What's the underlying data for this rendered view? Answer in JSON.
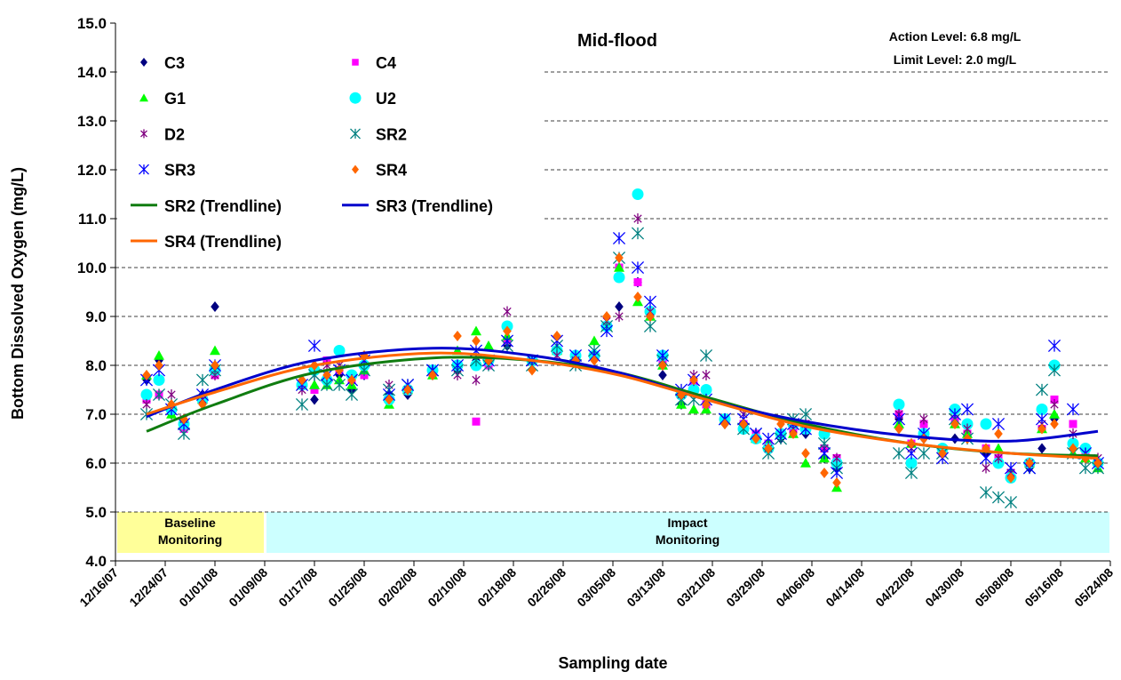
{
  "chart_data": {
    "type": "scatter",
    "title": "Mid-flood",
    "annotations": [
      "Action Level: 6.8 mg/L",
      "Limit Level: 2.0 mg/L"
    ],
    "x_label": "Sampling date",
    "y_label": "Bottom Dissolved Oxygen (mg/L)",
    "xlim": [
      "12/16/07",
      "05/24/08"
    ],
    "xticks": [
      "12/16/07",
      "12/24/07",
      "01/01/08",
      "01/09/08",
      "01/17/08",
      "01/25/08",
      "02/02/08",
      "02/10/08",
      "02/18/08",
      "02/26/08",
      "03/05/08",
      "03/13/08",
      "03/21/08",
      "03/29/08",
      "04/06/08",
      "04/14/08",
      "04/22/08",
      "04/30/08",
      "05/08/08",
      "05/16/08",
      "05/24/08"
    ],
    "ylim": [
      4,
      15
    ],
    "yticks": [
      {
        "value": 4,
        "label": "4.0"
      },
      {
        "value": 5,
        "label": "5.0"
      },
      {
        "value": 6,
        "label": "6.0"
      },
      {
        "value": 7,
        "label": "7.0"
      },
      {
        "value": 8,
        "label": "8.0"
      },
      {
        "value": 9,
        "label": "9.0"
      },
      {
        "value": 10,
        "label": "10.0"
      },
      {
        "value": 11,
        "label": "11.0"
      },
      {
        "value": 12,
        "label": "12.0"
      },
      {
        "value": 13,
        "label": "13.0"
      },
      {
        "value": 14,
        "label": "14.0"
      },
      {
        "value": 15,
        "label": "15.0"
      }
    ],
    "grid": true,
    "periods": [
      {
        "label_lines": [
          "Baseline",
          "Monitoring"
        ],
        "start": "12/16/07",
        "end": "01/09/08",
        "color": "#ffff99"
      },
      {
        "label_lines": [
          "Impact",
          "Monitoring"
        ],
        "start": "01/09/08",
        "end": "05/24/08",
        "color": "#ccffff"
      }
    ],
    "x": [
      "12/21/07",
      "12/23/07",
      "12/25/07",
      "12/27/07",
      "12/30/07",
      "01/01/08",
      "01/15/08",
      "01/17/08",
      "01/19/08",
      "01/21/08",
      "01/23/08",
      "01/25/08",
      "01/29/08",
      "02/01/08",
      "02/05/08",
      "02/09/08",
      "02/12/08",
      "02/14/08",
      "02/17/08",
      "02/21/08",
      "02/25/08",
      "02/28/08",
      "03/02/08",
      "03/04/08",
      "03/06/08",
      "03/09/08",
      "03/11/08",
      "03/13/08",
      "03/16/08",
      "03/18/08",
      "03/20/08",
      "03/23/08",
      "03/26/08",
      "03/28/08",
      "03/30/08",
      "04/01/08",
      "04/03/08",
      "04/05/08",
      "04/08/08",
      "04/10/08",
      "04/20/08",
      "04/22/08",
      "04/24/08",
      "04/27/08",
      "04/29/08",
      "05/01/08",
      "05/04/08",
      "05/06/08",
      "05/08/08",
      "05/11/08",
      "05/13/08",
      "05/15/08",
      "05/18/08",
      "05/20/08",
      "05/22/08"
    ],
    "series": [
      {
        "name": "C3",
        "color": "#000080",
        "marker": "diamond",
        "values": [
          7.7,
          8.1,
          7.0,
          6.7,
          7.4,
          9.2,
          7.6,
          7.3,
          7.7,
          7.8,
          7.5,
          7.8,
          7.4,
          7.4,
          7.8,
          7.9,
          8.1,
          8.0,
          8.4,
          8.1,
          8.3,
          8.1,
          8.2,
          8.8,
          9.2,
          9.7,
          9.0,
          7.8,
          7.2,
          7.5,
          7.2,
          6.8,
          6.8,
          6.5,
          6.3,
          6.5,
          6.7,
          6.6,
          6.1,
          5.9,
          6.9,
          6.4,
          6.5,
          6.2,
          6.5,
          6.6,
          6.2,
          6.0,
          5.7,
          5.9,
          6.3,
          6.9,
          6.3,
          6.1,
          6.0
        ]
      },
      {
        "name": "C4",
        "color": "#ff00ff",
        "marker": "square",
        "values": [
          7.3,
          7.4,
          7.1,
          6.7,
          7.3,
          7.8,
          7.6,
          7.5,
          8.1,
          7.9,
          7.7,
          7.8,
          7.3,
          7.5,
          7.8,
          8.0,
          6.85,
          8.0,
          8.5,
          8.1,
          8.3,
          8.2,
          8.2,
          8.8,
          10.0,
          9.7,
          9.1,
          8.1,
          7.4,
          7.6,
          7.2,
          6.9,
          6.8,
          6.6,
          6.4,
          6.6,
          6.7,
          6.8,
          6.3,
          6.1,
          7.0,
          6.4,
          6.8,
          6.2,
          6.9,
          6.6,
          6.3,
          6.1,
          5.8,
          6.0,
          6.7,
          7.3,
          6.8,
          6.2,
          6.0
        ]
      },
      {
        "name": "G1",
        "color": "#00ff00",
        "marker": "triangle",
        "values": [
          7.8,
          8.2,
          7.0,
          6.8,
          7.3,
          8.3,
          7.6,
          7.6,
          7.6,
          7.7,
          7.6,
          7.9,
          7.2,
          7.5,
          7.8,
          8.3,
          8.7,
          8.4,
          8.6,
          8.1,
          8.3,
          8.2,
          8.5,
          8.8,
          10.0,
          9.3,
          9.0,
          8.0,
          7.2,
          7.1,
          7.1,
          6.9,
          6.8,
          6.5,
          6.4,
          6.6,
          6.6,
          6.0,
          6.1,
          5.5,
          6.8,
          6.4,
          6.6,
          6.3,
          6.8,
          6.6,
          6.3,
          6.3,
          5.8,
          6.0,
          6.7,
          7.0,
          6.2,
          6.1,
          5.9
        ]
      },
      {
        "name": "U2",
        "color": "#00ffff",
        "marker": "circle",
        "values": [
          7.4,
          7.7,
          7.1,
          6.8,
          7.3,
          7.9,
          7.6,
          7.9,
          7.7,
          8.3,
          7.8,
          8.0,
          7.3,
          7.5,
          7.9,
          8.0,
          8.0,
          8.1,
          8.8,
          8.1,
          8.3,
          8.2,
          8.2,
          8.8,
          9.8,
          11.5,
          9.1,
          8.2,
          7.4,
          7.5,
          7.5,
          6.9,
          6.7,
          6.5,
          6.3,
          6.6,
          6.8,
          6.7,
          6.6,
          6.0,
          7.2,
          6.0,
          6.6,
          6.3,
          7.1,
          6.8,
          6.8,
          6.0,
          5.7,
          6.0,
          7.1,
          8.0,
          6.4,
          6.3,
          6.0
        ]
      },
      {
        "name": "D2",
        "color": "#800080",
        "marker": "asterisk",
        "values": [
          7.2,
          7.4,
          7.4,
          6.9,
          7.3,
          7.8,
          7.5,
          7.8,
          8.0,
          8.0,
          7.7,
          8.1,
          7.6,
          7.5,
          7.9,
          7.8,
          7.7,
          8.1,
          9.1,
          8.1,
          8.2,
          8.1,
          8.2,
          8.9,
          9.0,
          11.0,
          9.1,
          8.1,
          7.4,
          7.8,
          7.8,
          6.9,
          7.0,
          6.6,
          6.3,
          6.6,
          6.7,
          6.8,
          6.3,
          6.1,
          7.0,
          6.3,
          6.9,
          6.2,
          6.9,
          6.7,
          5.9,
          6.1,
          5.8,
          6.0,
          6.8,
          7.2,
          6.6,
          6.2,
          6.1
        ]
      },
      {
        "name": "SR2",
        "color": "#008080",
        "marker": "star",
        "values": [
          7.0,
          7.4,
          7.2,
          6.6,
          7.7,
          7.9,
          7.2,
          7.8,
          7.6,
          7.6,
          7.4,
          7.9,
          7.5,
          7.6,
          7.9,
          7.9,
          8.1,
          8.0,
          8.4,
          8.0,
          8.4,
          8.0,
          8.3,
          8.8,
          10.2,
          10.7,
          8.8,
          8.1,
          7.3,
          7.3,
          8.2,
          6.9,
          6.7,
          6.6,
          6.2,
          6.5,
          6.9,
          7.0,
          6.4,
          5.9,
          6.2,
          5.8,
          6.2,
          6.2,
          6.9,
          6.5,
          5.4,
          5.3,
          5.2,
          5.9,
          7.5,
          7.9,
          6.2,
          5.9,
          5.9
        ]
      },
      {
        "name": "SR3",
        "color": "#0000ff",
        "marker": "star",
        "values": [
          7.7,
          7.9,
          7.1,
          6.8,
          7.4,
          8.0,
          7.6,
          8.4,
          7.8,
          7.9,
          7.7,
          8.1,
          7.4,
          7.6,
          7.9,
          8.0,
          8.3,
          8.1,
          8.5,
          8.1,
          8.5,
          8.2,
          8.2,
          8.7,
          10.6,
          10.0,
          9.3,
          8.2,
          7.5,
          7.7,
          7.3,
          6.9,
          6.9,
          6.6,
          6.5,
          6.6,
          6.8,
          6.7,
          6.2,
          5.8,
          6.9,
          6.2,
          6.6,
          6.1,
          7.0,
          7.1,
          6.1,
          6.8,
          5.9,
          5.9,
          6.9,
          8.4,
          7.1,
          6.2,
          6.0
        ]
      },
      {
        "name": "SR4",
        "color": "#ff6600",
        "marker": "diamond",
        "values": [
          7.8,
          8.0,
          7.2,
          6.9,
          7.2,
          8.0,
          7.7,
          8.0,
          7.8,
          7.9,
          7.7,
          8.2,
          7.3,
          7.5,
          7.8,
          8.6,
          8.5,
          8.1,
          8.7,
          7.9,
          8.6,
          8.1,
          8.1,
          9.0,
          10.2,
          9.4,
          9.0,
          8.0,
          7.4,
          7.7,
          7.2,
          6.8,
          6.8,
          6.5,
          6.3,
          6.8,
          6.6,
          6.2,
          5.8,
          5.6,
          6.7,
          6.4,
          6.5,
          6.2,
          6.8,
          6.5,
          6.3,
          6.6,
          5.7,
          6.0,
          6.7,
          6.8,
          6.3,
          6.1,
          6.0
        ]
      },
      {
        "name": "SR2 (Trendline)",
        "color": "#107c10",
        "type": "line",
        "x": [
          "12/21/07",
          "01/01/08",
          "01/17/08",
          "02/05/08",
          "02/21/08",
          "03/06/08",
          "03/20/08",
          "04/05/08",
          "04/22/08",
          "05/08/08",
          "05/22/08"
        ],
        "values": [
          6.65,
          7.2,
          7.85,
          8.15,
          8.1,
          7.85,
          7.35,
          6.8,
          6.4,
          6.2,
          6.15
        ]
      },
      {
        "name": "SR3 (Trendline)",
        "color": "#0000cc",
        "type": "line",
        "x": [
          "12/21/07",
          "01/01/08",
          "01/17/08",
          "02/05/08",
          "02/21/08",
          "03/06/08",
          "03/20/08",
          "04/05/08",
          "04/22/08",
          "05/08/08",
          "05/22/08"
        ],
        "values": [
          6.95,
          7.5,
          8.1,
          8.35,
          8.2,
          7.85,
          7.3,
          6.85,
          6.55,
          6.45,
          6.65
        ]
      },
      {
        "name": "SR4 (Trendline)",
        "color": "#ff6600",
        "type": "line",
        "x": [
          "12/21/07",
          "01/01/08",
          "01/17/08",
          "02/05/08",
          "02/21/08",
          "03/06/08",
          "03/20/08",
          "04/05/08",
          "04/22/08",
          "05/08/08",
          "05/22/08"
        ],
        "values": [
          7.0,
          7.45,
          8.0,
          8.25,
          8.1,
          7.8,
          7.3,
          6.75,
          6.4,
          6.2,
          6.1
        ]
      }
    ]
  }
}
